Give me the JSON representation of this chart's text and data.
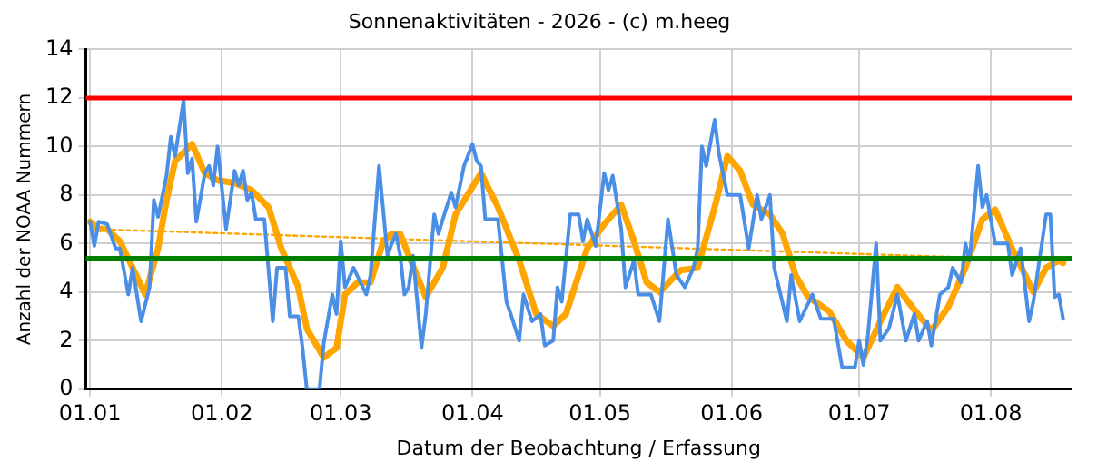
{
  "chart_data": {
    "type": "line",
    "title": "Sonnenaktivitäten - 2026 - (c) m.heeg",
    "xlabel": "Datum der Beobachtung / Erfassung",
    "ylabel": "Anzahl der NOAA Nummern",
    "xlim": [
      "2025-12-31",
      "2026-08-20"
    ],
    "xticks": [
      {
        "value": "2026-01-01",
        "label": "01.01"
      },
      {
        "value": "2026-02-01",
        "label": "01.02"
      },
      {
        "value": "2026-03-01",
        "label": "01.03"
      },
      {
        "value": "2026-04-01",
        "label": "01.04"
      },
      {
        "value": "2026-05-01",
        "label": "01.05"
      },
      {
        "value": "2026-06-01",
        "label": "01.06"
      },
      {
        "value": "2026-07-01",
        "label": "01.07"
      },
      {
        "value": "2026-08-01",
        "label": "01.08"
      }
    ],
    "ylim": [
      0,
      14
    ],
    "yticks": [
      0,
      2,
      4,
      6,
      8,
      10,
      12,
      14
    ],
    "grid": true,
    "legend": false,
    "marker": "none",
    "series": [
      {
        "color": "#4a8ee6",
        "line_style": "solid",
        "x": [
          "2026-01-01",
          "2026-01-02",
          "2026-01-03",
          "2026-01-05",
          "2026-01-07",
          "2026-01-08",
          "2026-01-10",
          "2026-01-11",
          "2026-01-13",
          "2026-01-15",
          "2026-01-16",
          "2026-01-17",
          "2026-01-19",
          "2026-01-20",
          "2026-01-21",
          "2026-01-23",
          "2026-01-24",
          "2026-01-25",
          "2026-01-26",
          "2026-01-28",
          "2026-01-29",
          "2026-01-30",
          "2026-01-31",
          "2026-02-02",
          "2026-02-04",
          "2026-02-05",
          "2026-02-06",
          "2026-02-07",
          "2026-02-08",
          "2026-02-09",
          "2026-02-11",
          "2026-02-13",
          "2026-02-14",
          "2026-02-16",
          "2026-02-17",
          "2026-02-19",
          "2026-02-20",
          "2026-02-21",
          "2026-02-24",
          "2026-02-25",
          "2026-02-27",
          "2026-02-28",
          "2026-03-01",
          "2026-03-02",
          "2026-03-04",
          "2026-03-07",
          "2026-03-08",
          "2026-03-10",
          "2026-03-12",
          "2026-03-13",
          "2026-03-14",
          "2026-03-15",
          "2026-03-16",
          "2026-03-17",
          "2026-03-18",
          "2026-03-20",
          "2026-03-21",
          "2026-03-23",
          "2026-03-24",
          "2026-03-25",
          "2026-03-27",
          "2026-03-28",
          "2026-03-30",
          "2026-04-01",
          "2026-04-02",
          "2026-04-03",
          "2026-04-04",
          "2026-04-07",
          "2026-04-09",
          "2026-04-10",
          "2026-04-12",
          "2026-04-13",
          "2026-04-15",
          "2026-04-17",
          "2026-04-18",
          "2026-04-20",
          "2026-04-21",
          "2026-04-22",
          "2026-04-24",
          "2026-04-26",
          "2026-04-27",
          "2026-04-28",
          "2026-04-30",
          "2026-05-02",
          "2026-05-03",
          "2026-05-04",
          "2026-05-06",
          "2026-05-07",
          "2026-05-09",
          "2026-05-10",
          "2026-05-13",
          "2026-05-15",
          "2026-05-17",
          "2026-05-19",
          "2026-05-21",
          "2026-05-23",
          "2026-05-24",
          "2026-05-25",
          "2026-05-26",
          "2026-05-28",
          "2026-05-29",
          "2026-05-31",
          "2026-06-01",
          "2026-06-03",
          "2026-06-05",
          "2026-06-07",
          "2026-06-08",
          "2026-06-10",
          "2026-06-11",
          "2026-06-14",
          "2026-06-15",
          "2026-06-17",
          "2026-06-20",
          "2026-06-22",
          "2026-06-25",
          "2026-06-27",
          "2026-06-30",
          "2026-07-01",
          "2026-07-02",
          "2026-07-03",
          "2026-07-05",
          "2026-07-06",
          "2026-07-08",
          "2026-07-10",
          "2026-07-12",
          "2026-07-14",
          "2026-07-15",
          "2026-07-17",
          "2026-07-18",
          "2026-07-20",
          "2026-07-22",
          "2026-07-23",
          "2026-07-25",
          "2026-07-26",
          "2026-07-27",
          "2026-07-29",
          "2026-07-30",
          "2026-07-31",
          "2026-08-02",
          "2026-08-05",
          "2026-08-06",
          "2026-08-08",
          "2026-08-10",
          "2026-08-11",
          "2026-08-14",
          "2026-08-15",
          "2026-08-16",
          "2026-08-17",
          "2026-08-18"
        ],
        "values": [
          6.9,
          5.9,
          6.9,
          6.8,
          5.8,
          5.8,
          3.9,
          5.0,
          2.8,
          4.2,
          7.8,
          7.1,
          8.8,
          10.4,
          9.6,
          11.9,
          8.9,
          9.5,
          6.9,
          8.9,
          9.2,
          8.4,
          10.0,
          6.6,
          9.0,
          8.4,
          9.0,
          7.8,
          8.1,
          7.0,
          7.0,
          2.8,
          5.0,
          5.0,
          3.0,
          3.0,
          1.7,
          0,
          0,
          1.9,
          3.9,
          3.1,
          6.1,
          4.2,
          5.0,
          3.9,
          4.7,
          9.2,
          5.5,
          6.0,
          6.4,
          5.5,
          3.9,
          4.2,
          5.5,
          1.7,
          3.1,
          7.2,
          6.4,
          7.0,
          8.1,
          7.5,
          9.2,
          10.1,
          9.4,
          9.2,
          7.0,
          7.0,
          3.6,
          3.1,
          2.0,
          3.9,
          2.8,
          3.1,
          1.8,
          2.0,
          4.2,
          3.6,
          7.2,
          7.2,
          6.1,
          7.0,
          5.9,
          8.9,
          8.2,
          8.8,
          6.6,
          4.2,
          5.3,
          3.9,
          3.9,
          2.8,
          7.0,
          4.7,
          4.2,
          5.0,
          5.8,
          10.0,
          9.2,
          11.1,
          9.7,
          8.0,
          8.0,
          8.0,
          5.8,
          8.0,
          7.0,
          8.0,
          5.0,
          2.8,
          4.7,
          2.8,
          3.9,
          2.9,
          2.9,
          0.9,
          0.9,
          2.0,
          1.0,
          2.1,
          6.0,
          2.0,
          2.5,
          3.9,
          2.0,
          3.1,
          2.0,
          2.8,
          1.8,
          3.9,
          4.2,
          5.0,
          4.4,
          6.0,
          5.3,
          9.2,
          7.5,
          8.0,
          6.0,
          6.0,
          4.7,
          5.8,
          2.8,
          3.6,
          7.2,
          7.2,
          3.8,
          3.9,
          2.9
        ]
      },
      {
        "color": "#ffa500",
        "line_style": "solid",
        "x": [
          "2026-01-01",
          "2026-01-03",
          "2026-01-05",
          "2026-01-08",
          "2026-01-11",
          "2026-01-14",
          "2026-01-17",
          "2026-01-19",
          "2026-01-21",
          "2026-01-25",
          "2026-01-28",
          "2026-01-31",
          "2026-02-04",
          "2026-02-08",
          "2026-02-12",
          "2026-02-15",
          "2026-02-19",
          "2026-02-21",
          "2026-02-25",
          "2026-02-28",
          "2026-03-02",
          "2026-03-05",
          "2026-03-08",
          "2026-03-11",
          "2026-03-13",
          "2026-03-15",
          "2026-03-17",
          "2026-03-21",
          "2026-03-25",
          "2026-03-28",
          "2026-04-03",
          "2026-04-07",
          "2026-04-12",
          "2026-04-16",
          "2026-04-20",
          "2026-04-23",
          "2026-04-28",
          "2026-05-02",
          "2026-05-06",
          "2026-05-09",
          "2026-05-12",
          "2026-05-15",
          "2026-05-20",
          "2026-05-24",
          "2026-05-28",
          "2026-05-31",
          "2026-06-03",
          "2026-06-06",
          "2026-06-10",
          "2026-06-13",
          "2026-06-16",
          "2026-06-19",
          "2026-06-24",
          "2026-06-28",
          "2026-07-02",
          "2026-07-06",
          "2026-07-10",
          "2026-07-13",
          "2026-07-18",
          "2026-07-22",
          "2026-07-26",
          "2026-07-30",
          "2026-08-02",
          "2026-08-06",
          "2026-08-11",
          "2026-08-14",
          "2026-08-17",
          "2026-08-18"
        ],
        "values": [
          6.9,
          6.6,
          6.6,
          6.1,
          5.0,
          3.9,
          5.8,
          7.8,
          9.4,
          10.1,
          8.9,
          8.6,
          8.5,
          8.2,
          7.5,
          5.8,
          4.2,
          2.5,
          1.3,
          1.7,
          3.9,
          4.4,
          4.4,
          6.1,
          6.4,
          6.4,
          5.5,
          3.8,
          5.0,
          7.2,
          8.9,
          7.5,
          5.3,
          3.1,
          2.6,
          3.1,
          5.8,
          6.8,
          7.6,
          6.1,
          4.4,
          4.0,
          4.9,
          5.0,
          7.5,
          9.6,
          9.0,
          7.6,
          7.2,
          6.4,
          4.7,
          3.8,
          3.2,
          2.0,
          1.3,
          2.8,
          4.2,
          3.5,
          2.4,
          3.4,
          5.0,
          7.0,
          7.4,
          5.8,
          4.0,
          5.0,
          5.3,
          5.2
        ]
      },
      {
        "color": "#ffa500",
        "line_style": "dotted",
        "x": [
          "2026-01-01",
          "2026-08-18"
        ],
        "values": [
          6.6,
          5.3
        ]
      }
    ],
    "ref_lines": [
      {
        "axis": "y",
        "value": 12,
        "color": "#ff0000"
      },
      {
        "axis": "y",
        "value": 5.4,
        "color": "#008000"
      }
    ]
  }
}
